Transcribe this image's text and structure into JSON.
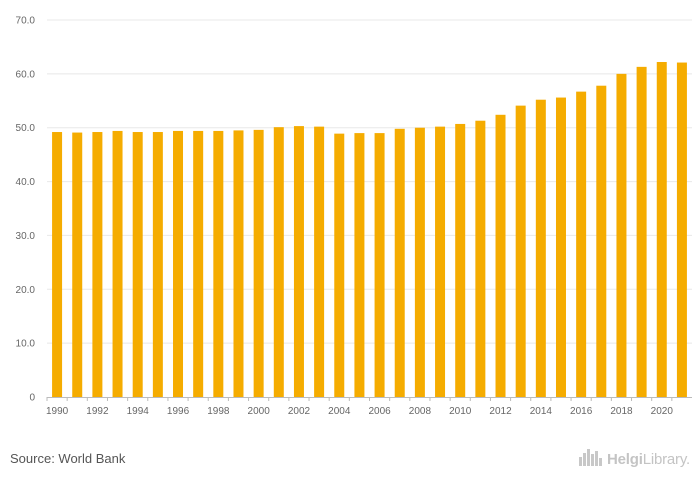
{
  "chart_data": {
    "type": "bar",
    "title": "",
    "xlabel": "",
    "ylabel": "",
    "categories": [
      "1990",
      "1991",
      "1992",
      "1993",
      "1994",
      "1995",
      "1996",
      "1997",
      "1998",
      "1999",
      "2000",
      "2001",
      "2002",
      "2003",
      "2004",
      "2005",
      "2006",
      "2007",
      "2008",
      "2009",
      "2010",
      "2011",
      "2012",
      "2013",
      "2014",
      "2015",
      "2016",
      "2017",
      "2018",
      "2019",
      "2020",
      "2021"
    ],
    "x_tick_labels": [
      "1990",
      "1992",
      "1994",
      "1996",
      "1998",
      "2000",
      "2002",
      "2004",
      "2006",
      "2008",
      "2010",
      "2012",
      "2014",
      "2016",
      "2018",
      "2020"
    ],
    "values": [
      49.2,
      49.1,
      49.2,
      49.4,
      49.2,
      49.2,
      49.4,
      49.4,
      49.4,
      49.5,
      49.6,
      50.1,
      50.3,
      50.2,
      48.9,
      49.0,
      49.0,
      49.8,
      50.0,
      50.2,
      50.7,
      51.3,
      52.4,
      54.1,
      55.2,
      55.6,
      56.7,
      57.8,
      60.0,
      61.3,
      62.2,
      62.1
    ],
    "ylim": [
      0,
      70
    ],
    "y_ticks": [
      {
        "value": 0,
        "label": "0"
      },
      {
        "value": 10,
        "label": "10.0"
      },
      {
        "value": 20,
        "label": "20.0"
      },
      {
        "value": 30,
        "label": "30.0"
      },
      {
        "value": 40,
        "label": "40.0"
      },
      {
        "value": 50,
        "label": "50.0"
      },
      {
        "value": 60,
        "label": "60.0"
      },
      {
        "value": 70,
        "label": "70.0"
      }
    ],
    "grid": true,
    "legend": "none",
    "colors": {
      "bar": "#f5ac00",
      "grid": "#e8e8e8",
      "axis": "#bbbbbb"
    }
  },
  "footer": {
    "source": "Source: World Bank",
    "brand_strong": "Helgi",
    "brand_light": "Library",
    "brand_dot": ".",
    "brand_icon": "city-skyline-icon"
  }
}
